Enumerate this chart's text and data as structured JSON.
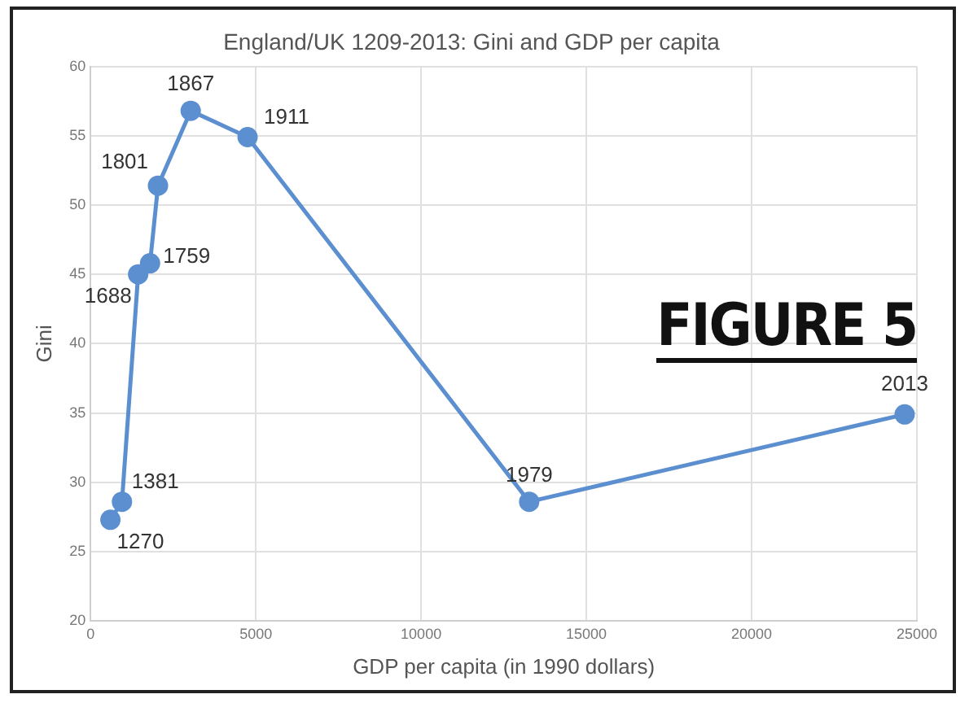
{
  "chart_data": {
    "type": "line",
    "title": "England/UK 1209-2013: Gini and GDP per capita",
    "xlabel": "GDP per capita (in 1990 dollars)",
    "ylabel": "Gini",
    "x": [
      600,
      950,
      1440,
      1800,
      2040,
      3030,
      4750,
      13270,
      24630
    ],
    "series": [
      {
        "color": "#5b8fd0",
        "values": [
          27.3,
          28.6,
          45.0,
          45.8,
          51.4,
          56.8,
          54.9,
          28.6,
          34.9
        ]
      }
    ],
    "xlim": [
      0,
      25000
    ],
    "xticks": [
      0,
      5000,
      10000,
      15000,
      20000,
      25000
    ],
    "ylim": [
      20,
      60
    ],
    "yticks": [
      20,
      25,
      30,
      35,
      40,
      45,
      50,
      55,
      60
    ],
    "grid": true,
    "marker": "circle",
    "line_style": "solid",
    "legend": false,
    "annotations": [
      {
        "text": "1270",
        "x": 600,
        "y": 27.3
      },
      {
        "text": "1381",
        "x": 950,
        "y": 28.6
      },
      {
        "text": "1688",
        "x": 1440,
        "y": 45.0
      },
      {
        "text": "1759",
        "x": 1800,
        "y": 45.8
      },
      {
        "text": "1801",
        "x": 2040,
        "y": 51.4
      },
      {
        "text": "1867",
        "x": 3030,
        "y": 56.8
      },
      {
        "text": "1911",
        "x": 4750,
        "y": 54.9
      },
      {
        "text": "1979",
        "x": 13270,
        "y": 28.6
      },
      {
        "text": "2013",
        "x": 24630,
        "y": 34.9
      },
      "FIGURE 5"
    ]
  }
}
